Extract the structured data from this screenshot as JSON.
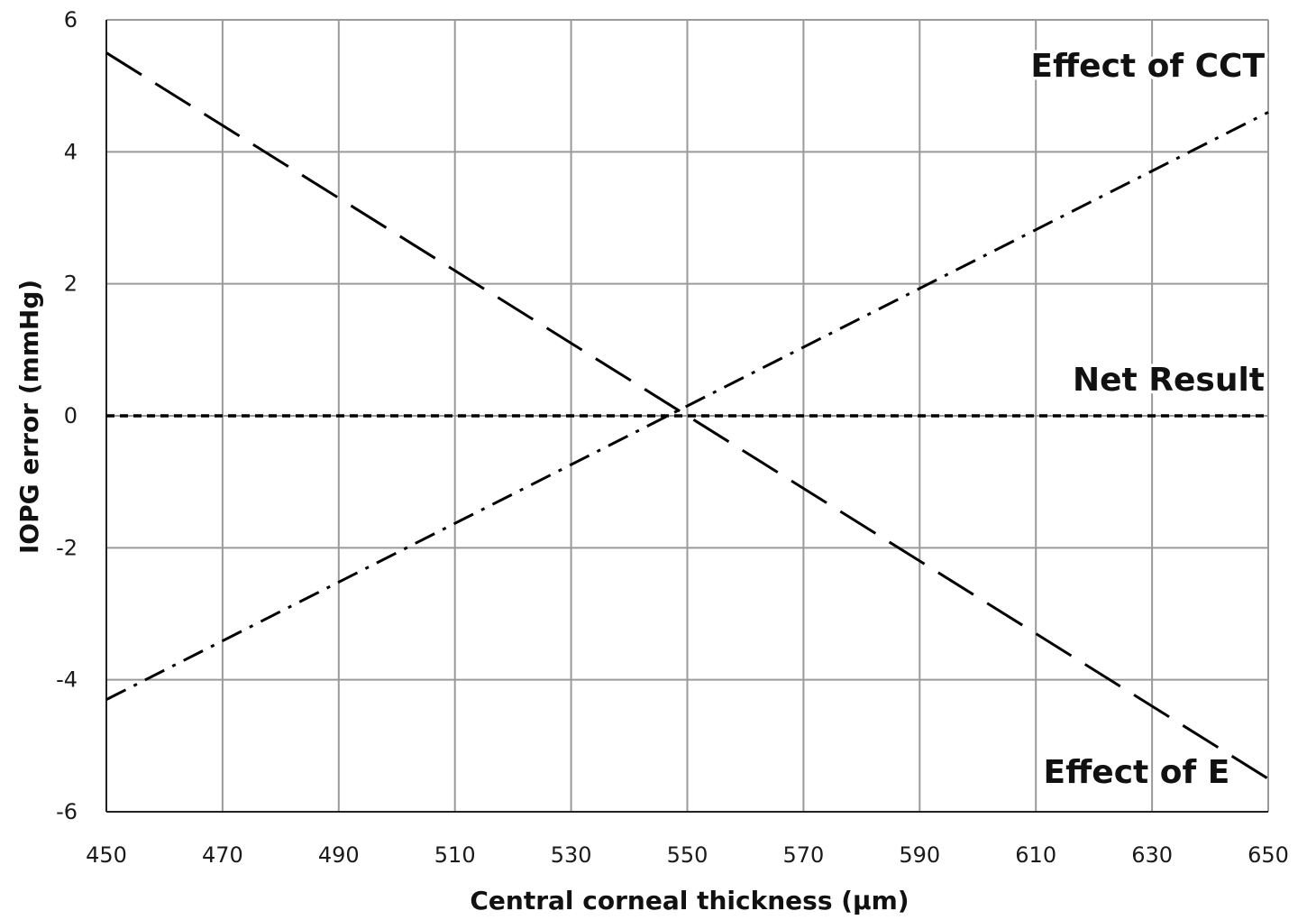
{
  "chart_data": {
    "type": "line",
    "title": "",
    "xlabel": "Central corneal thickness (μm)",
    "ylabel": "IOPG error (mmHg)",
    "xlim": [
      450,
      650
    ],
    "ylim": [
      -6,
      6
    ],
    "x_ticks": [
      450,
      470,
      490,
      510,
      530,
      550,
      570,
      590,
      610,
      630,
      650
    ],
    "y_ticks": [
      6,
      4,
      2,
      0,
      -2,
      -4,
      -6
    ],
    "grid": true,
    "legend": "none",
    "series": [
      {
        "line_style": "long-dash",
        "color": "#000000",
        "x": [
          450,
          650
        ],
        "y": [
          5.5,
          -5.5
        ]
      },
      {
        "line_style": "dash-dot",
        "color": "#000000",
        "x": [
          450,
          650
        ],
        "y": [
          -4.3,
          4.6
        ]
      },
      {
        "line_style": "short-dash",
        "color": "#000000",
        "x": [
          450,
          650
        ],
        "y": [
          0,
          0
        ]
      }
    ],
    "annotations": [
      {
        "text": "Effect of CCT",
        "x": 650,
        "y": 5.3,
        "anchor": "end"
      },
      {
        "text": "Net Result",
        "x": 650,
        "y": 0.55,
        "anchor": "end"
      },
      {
        "text": "Effect of E",
        "x": 644,
        "y": -5.4,
        "anchor": "end"
      }
    ]
  }
}
